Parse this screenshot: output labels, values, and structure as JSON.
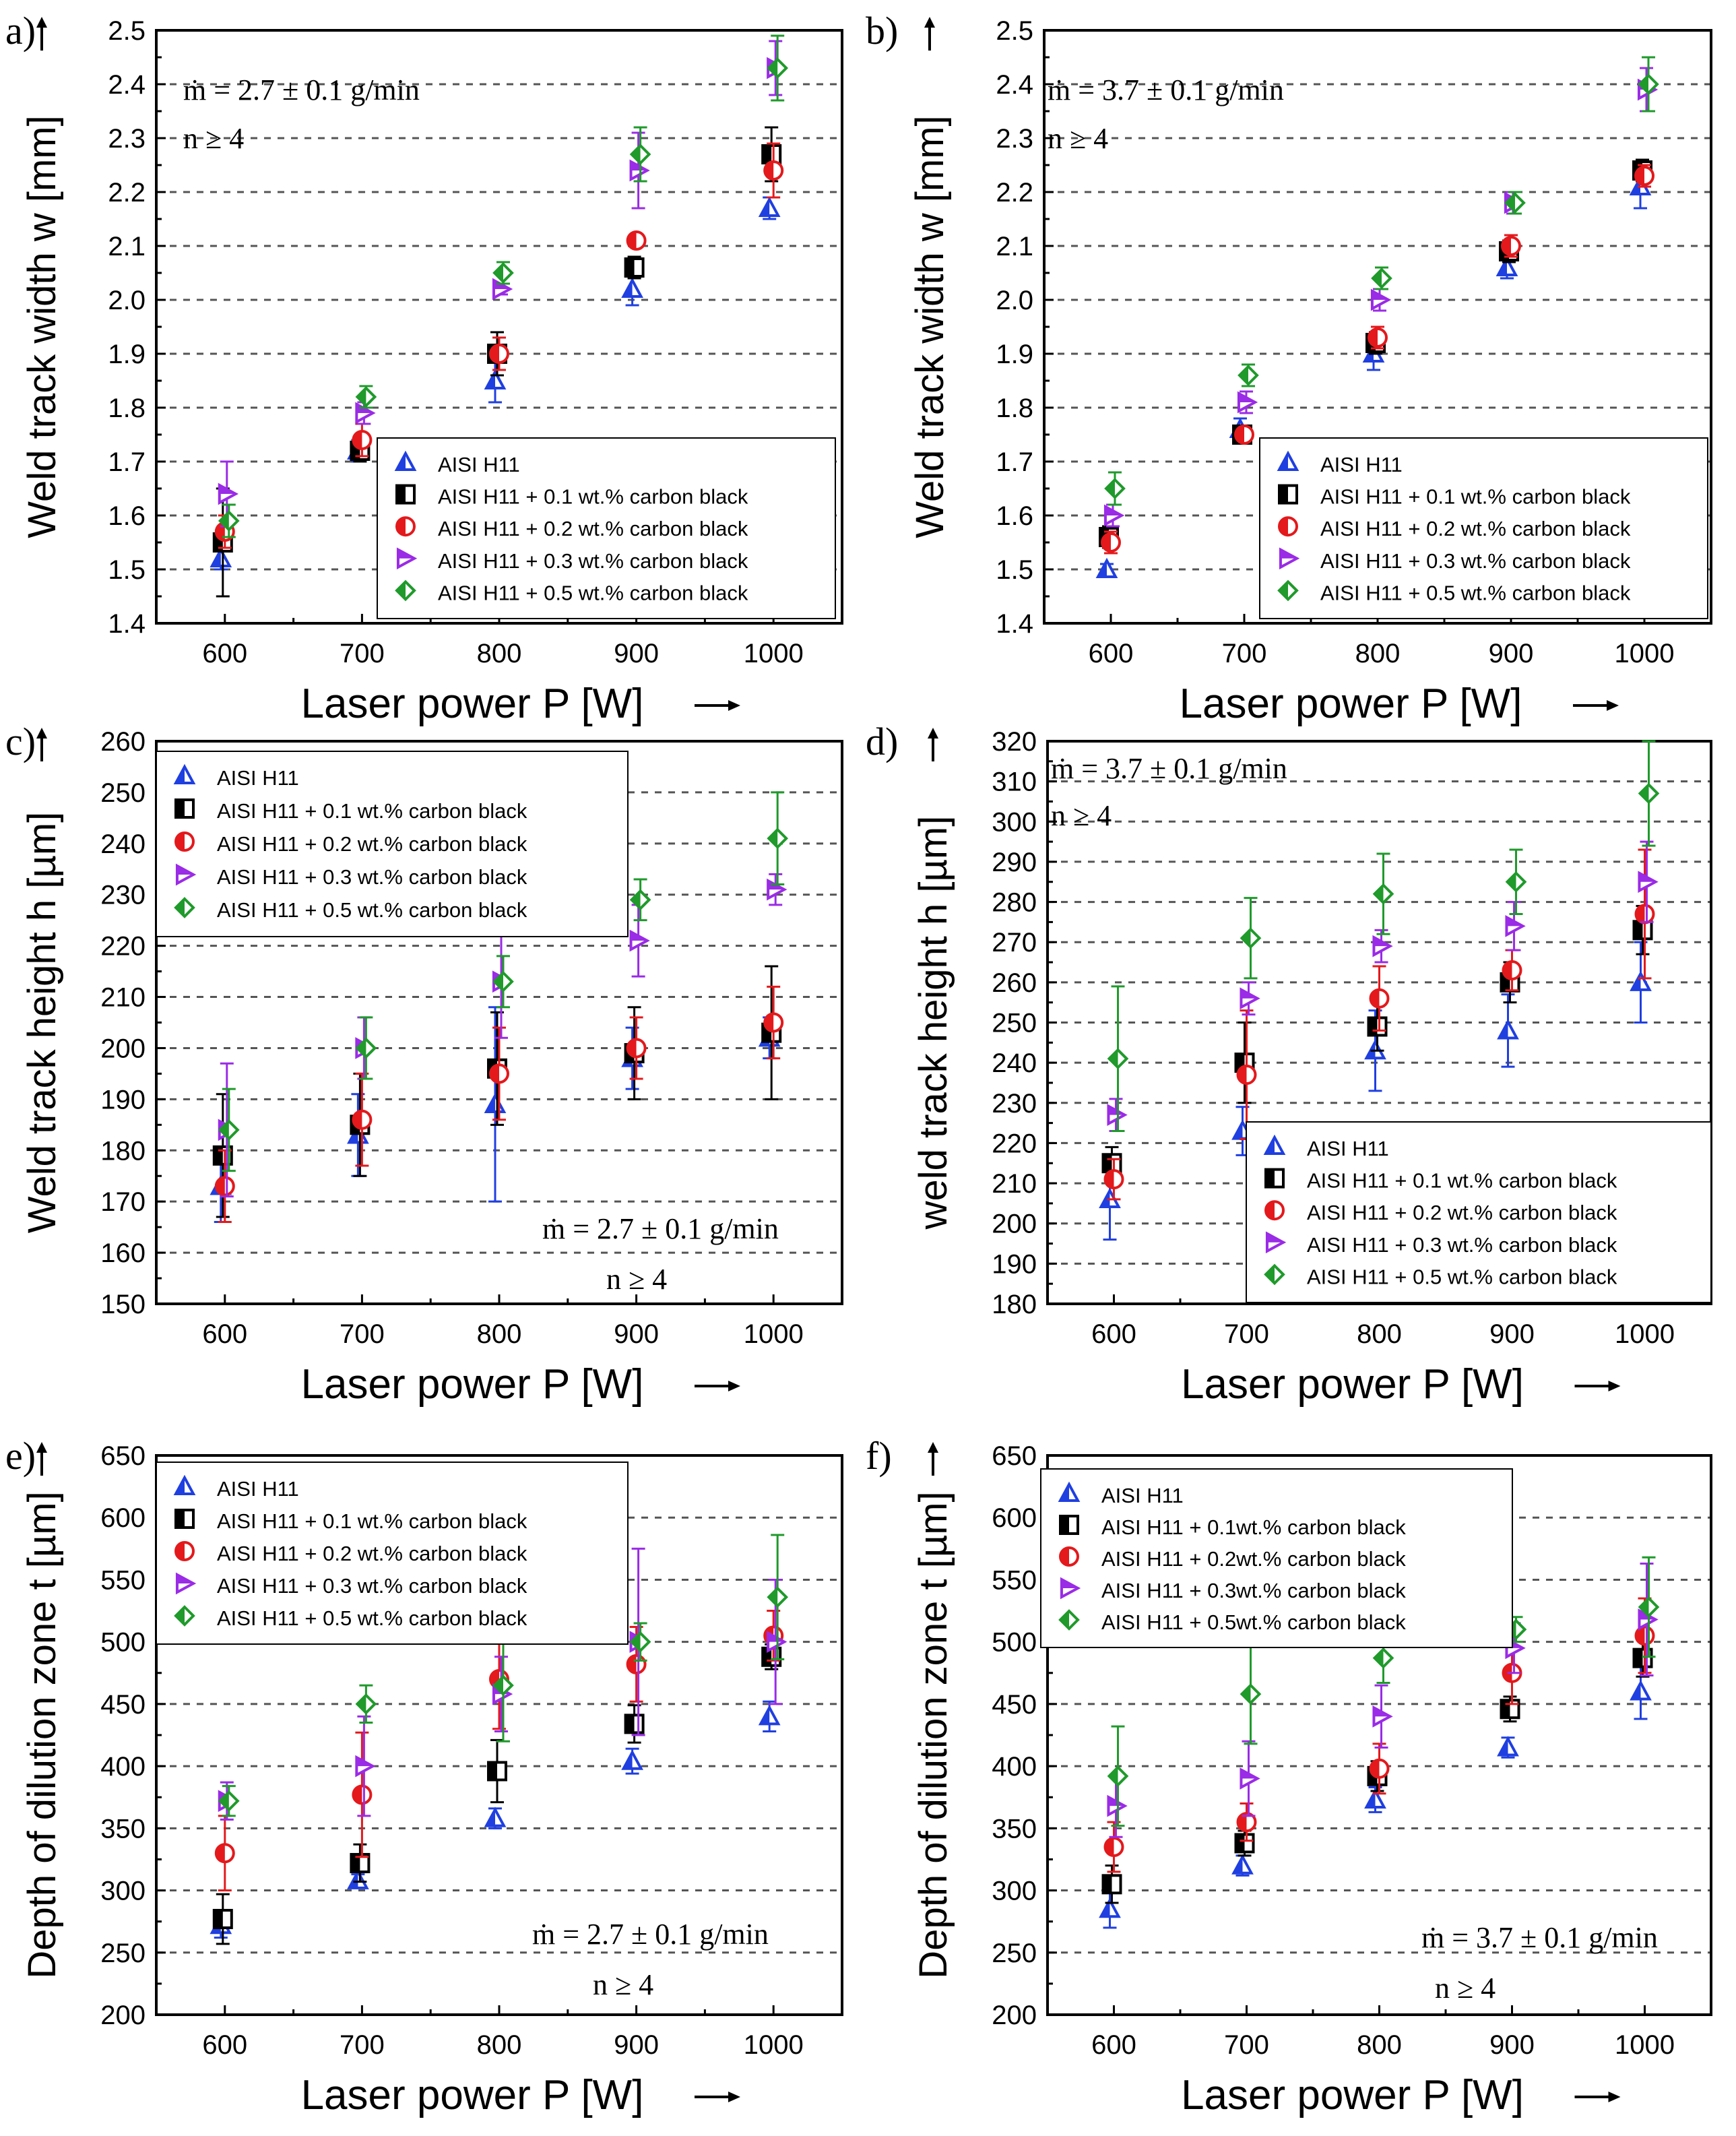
{
  "figure": {
    "series_names": [
      "AISI H11",
      "AISI H11 + 0.1 wt.% carbon black",
      "AISI H11 + 0.2 wt.% carbon black",
      "AISI H11 + 0.3 wt.% carbon black",
      "AISI H11 + 0.5 wt.% carbon black"
    ],
    "series_colors": [
      "#1f3fe0",
      "#000000",
      "#e3191c",
      "#9a2be6",
      "#1f9a2b"
    ],
    "series_markers": [
      "triangle-up",
      "square",
      "circle",
      "triangle-right",
      "diamond"
    ]
  },
  "chart_data": [
    {
      "panel": "a)",
      "type": "scatter",
      "ylabel": "Weld track width w [mm]",
      "xlabel": "Laser power P [W]",
      "x": [
        600,
        700,
        800,
        900,
        1000
      ],
      "xlim": [
        550,
        1050
      ],
      "ylim": [
        1.4,
        2.5
      ],
      "yticks": [
        "1.4",
        "1.5",
        "1.6",
        "1.7",
        "1.8",
        "1.9",
        "2.0",
        "2.1",
        "2.2",
        "2.3",
        "2.4",
        "2.5"
      ],
      "xticks": [
        "600",
        "700",
        "800",
        "900",
        "1000"
      ],
      "annotations": [
        "ṁ = 2.7 ± 0.1 g/min",
        "n  ≥ 4"
      ],
      "legend_names": [
        "AISI H11",
        "AISI H11 + 0.1 wt.% carbon black",
        "AISI H11 + 0.2 wt.% carbon black",
        "AISI H11 + 0.3 wt.% carbon black",
        "AISI H11 + 0.5 wt.% carbon black"
      ],
      "series": [
        {
          "name": "AISI H11",
          "values": [
            1.52,
            1.72,
            1.85,
            2.02,
            2.17
          ],
          "errors": [
            0.02,
            0.02,
            0.04,
            0.03,
            0.02
          ]
        },
        {
          "name": "AISI H11 + 0.1 wt.% carbon black",
          "values": [
            1.55,
            1.72,
            1.9,
            2.06,
            2.27
          ],
          "errors": [
            0.1,
            0.02,
            0.04,
            0.02,
            0.05
          ]
        },
        {
          "name": "AISI H11 + 0.2 wt.% carbon black",
          "values": [
            1.57,
            1.74,
            1.9,
            2.11,
            2.24
          ],
          "errors": [
            0.03,
            0.03,
            0.03,
            0.01,
            0.05
          ]
        },
        {
          "name": "AISI H11 + 0.3 wt.% carbon black",
          "values": [
            1.64,
            1.79,
            2.02,
            2.24,
            2.43
          ],
          "errors": [
            0.06,
            0.02,
            0.01,
            0.07,
            0.05
          ]
        },
        {
          "name": "AISI H11 + 0.5 wt.% carbon black",
          "values": [
            1.59,
            1.82,
            2.05,
            2.27,
            2.43
          ],
          "errors": [
            0.03,
            0.02,
            0.02,
            0.05,
            0.06
          ]
        }
      ]
    },
    {
      "panel": "b)",
      "type": "scatter",
      "ylabel": "Weld track width w [mm]",
      "xlabel": "Laser power P [W]",
      "x": [
        600,
        700,
        800,
        900,
        1000
      ],
      "xlim": [
        550,
        1050
      ],
      "ylim": [
        1.4,
        2.5
      ],
      "yticks": [
        "1.4",
        "1.5",
        "1.6",
        "1.7",
        "1.8",
        "1.9",
        "2.0",
        "2.1",
        "2.2",
        "2.3",
        "2.4",
        "2.5"
      ],
      "xticks": [
        "600",
        "700",
        "800",
        "900",
        "1000"
      ],
      "annotations": [
        "ṁ = 3.7 ± 0.1 g/min",
        "n  ≥ 4"
      ],
      "legend_names": [
        "AISI H11",
        "AISI H11 + 0.1 wt.% carbon black",
        "AISI H11 + 0.2 wt.% carbon black",
        "AISI H11 + 0.3 wt.% carbon black",
        "AISI H11 + 0.5 wt.% carbon black"
      ],
      "series": [
        {
          "name": "AISI H11",
          "values": [
            1.5,
            1.76,
            1.9,
            2.06,
            2.21
          ],
          "errors": [
            0.01,
            0.02,
            0.03,
            0.02,
            0.04
          ]
        },
        {
          "name": "AISI H11 + 0.1 wt.% carbon black",
          "values": [
            1.56,
            1.75,
            1.92,
            2.09,
            2.24
          ],
          "errors": [
            0.02,
            0.01,
            0.02,
            0.02,
            0.02
          ]
        },
        {
          "name": "AISI H11 + 0.2 wt.% carbon black",
          "values": [
            1.55,
            1.75,
            1.93,
            2.1,
            2.23
          ],
          "errors": [
            0.02,
            0.01,
            0.02,
            0.02,
            0.02
          ]
        },
        {
          "name": "AISI H11 + 0.3 wt.% carbon black",
          "values": [
            1.6,
            1.81,
            2.0,
            2.18,
            2.39
          ],
          "errors": [
            0.02,
            0.02,
            0.02,
            0.02,
            0.04
          ]
        },
        {
          "name": "AISI H11 + 0.5 wt.% carbon black",
          "values": [
            1.65,
            1.86,
            2.04,
            2.18,
            2.4
          ],
          "errors": [
            0.03,
            0.02,
            0.02,
            0.02,
            0.05
          ]
        }
      ]
    },
    {
      "panel": "c)",
      "type": "scatter",
      "ylabel": "Weld track height h [µm]",
      "xlabel": "Laser power P [W]",
      "x": [
        600,
        700,
        800,
        900,
        1000
      ],
      "xlim": [
        550,
        1050
      ],
      "ylim": [
        150,
        260
      ],
      "yticks": [
        "150",
        "160",
        "170",
        "180",
        "190",
        "200",
        "210",
        "220",
        "230",
        "240",
        "250",
        "260"
      ],
      "xticks": [
        "600",
        "700",
        "800",
        "900",
        "1000"
      ],
      "annotations": [
        "ṁ = 2.7 ± 0.1 g/min",
        "n  ≥ 4"
      ],
      "legend_names": [
        "AISI H11",
        "AISI H11 + 0.1 wt.% carbon black",
        "AISI H11 + 0.2 wt.% carbon black",
        "AISI H11 + 0.3 wt.% carbon black",
        "AISI H11 + 0.5 wt.% carbon black"
      ],
      "series": [
        {
          "name": "AISI H11",
          "values": [
            173,
            183,
            189,
            198,
            202
          ],
          "errors": [
            7,
            8,
            19,
            6,
            4
          ]
        },
        {
          "name": "AISI H11 + 0.1 wt.% carbon black",
          "values": [
            179,
            185,
            196,
            199,
            203
          ],
          "errors": [
            12,
            10,
            11,
            9,
            13
          ]
        },
        {
          "name": "AISI H11 + 0.2 wt.% carbon black",
          "values": [
            173,
            186,
            195,
            200,
            205
          ],
          "errors": [
            7,
            9,
            9,
            6,
            7
          ]
        },
        {
          "name": "AISI H11 + 0.3 wt.% carbon black",
          "values": [
            184,
            200,
            213,
            221,
            231
          ],
          "errors": [
            13,
            6,
            11,
            7,
            3
          ]
        },
        {
          "name": "AISI H11 + 0.5 wt.% carbon black",
          "values": [
            184,
            200,
            213,
            229,
            241
          ],
          "errors": [
            8,
            6,
            5,
            4,
            9
          ]
        }
      ]
    },
    {
      "panel": "d)",
      "type": "scatter",
      "ylabel": "weld track height h [µm]",
      "xlabel": "Laser power P [W]",
      "x": [
        600,
        700,
        800,
        900,
        1000
      ],
      "xlim": [
        550,
        1050
      ],
      "ylim": [
        180,
        320
      ],
      "yticks": [
        "180",
        "190",
        "200",
        "210",
        "220",
        "230",
        "240",
        "250",
        "260",
        "270",
        "280",
        "290",
        "300",
        "310",
        "320"
      ],
      "xticks": [
        "600",
        "700",
        "800",
        "900",
        "1000"
      ],
      "annotations": [
        "ṁ = 3.7 ± 0.1 g/min",
        "n  ≥ 4"
      ],
      "legend_names": [
        "AISI H11",
        "AISI H11 + 0.1 wt.% carbon black",
        "AISI H11 + 0.2 wt.% carbon black",
        "AISI H11 + 0.3 wt.% carbon black",
        "AISI H11 + 0.5 wt.% carbon black"
      ],
      "series": [
        {
          "name": "AISI H11",
          "values": [
            206,
            223,
            243,
            248,
            260
          ],
          "errors": [
            10,
            6,
            10,
            9,
            10
          ]
        },
        {
          "name": "AISI H11 + 0.1 wt.% carbon black",
          "values": [
            215,
            240,
            249,
            260,
            273
          ],
          "errors": [
            4,
            10,
            6,
            5,
            6
          ]
        },
        {
          "name": "AISI H11 + 0.2 wt.% carbon black",
          "values": [
            211,
            237,
            256,
            263,
            277
          ],
          "errors": [
            5,
            16,
            8,
            5,
            16
          ]
        },
        {
          "name": "AISI H11 + 0.3 wt.% carbon black",
          "values": [
            227,
            256,
            269,
            274,
            285
          ],
          "errors": [
            4,
            4,
            4,
            6,
            10
          ]
        },
        {
          "name": "AISI H11 + 0.5 wt.% carbon black",
          "values": [
            241,
            271,
            282,
            285,
            307
          ],
          "errors": [
            18,
            10,
            10,
            8,
            13
          ]
        }
      ]
    },
    {
      "panel": "e)",
      "type": "scatter",
      "ylabel": "Depth of dilution zone t [µm]",
      "xlabel": "Laser power P [W]",
      "x": [
        600,
        700,
        800,
        900,
        1000
      ],
      "xlim": [
        550,
        1050
      ],
      "ylim": [
        200,
        650
      ],
      "yticks": [
        "200",
        "250",
        "300",
        "350",
        "400",
        "450",
        "500",
        "550",
        "600",
        "650"
      ],
      "xticks": [
        "600",
        "700",
        "800",
        "900",
        "1000"
      ],
      "annotations": [
        "ṁ = 2.7 ± 0.1 g/min",
        "n  ≥ 4"
      ],
      "legend_names": [
        "AISI H11",
        "AISI H11 + 0.1 wt.% carbon black",
        "AISI H11 + 0.2 wt.% carbon black",
        "AISI H11 + 0.3 wt.% carbon black",
        "AISI H11 + 0.5 wt.% carbon black"
      ],
      "series": [
        {
          "name": "AISI H11",
          "values": [
            272,
            308,
            358,
            404,
            440
          ],
          "errors": [
            10,
            5,
            8,
            10,
            12
          ]
        },
        {
          "name": "AISI H11 + 0.1 wt.% carbon black",
          "values": [
            277,
            322,
            396,
            434,
            488
          ],
          "errors": [
            20,
            15,
            25,
            15,
            10
          ]
        },
        {
          "name": "AISI H11 + 0.2 wt.% carbon black",
          "values": [
            330,
            377,
            470,
            482,
            505
          ],
          "errors": [
            30,
            50,
            40,
            30,
            20
          ]
        },
        {
          "name": "AISI H11 + 0.3 wt.% carbon black",
          "values": [
            372,
            400,
            458,
            500,
            500
          ],
          "errors": [
            15,
            40,
            30,
            75,
            50
          ]
        },
        {
          "name": "AISI H11 + 0.5 wt.% carbon black",
          "values": [
            372,
            450,
            465,
            500,
            536
          ],
          "errors": [
            12,
            15,
            45,
            15,
            50
          ]
        }
      ]
    },
    {
      "panel": "f)",
      "type": "scatter",
      "ylabel": "Depth of dilution zone t [µm]",
      "xlabel": "Laser power P [W]",
      "x": [
        600,
        700,
        800,
        900,
        1000
      ],
      "xlim": [
        550,
        1050
      ],
      "ylim": [
        200,
        650
      ],
      "yticks": [
        "200",
        "250",
        "300",
        "350",
        "400",
        "450",
        "500",
        "550",
        "600",
        "650"
      ],
      "xticks": [
        "600",
        "700",
        "800",
        "900",
        "1000"
      ],
      "annotations": [
        "ṁ = 3.7 ± 0.1 g/min",
        "n  ≥ 4"
      ],
      "legend_names": [
        "AISI H11",
        "AISI H11 + 0.1wt.% carbon black",
        "AISI H11 + 0.2wt.% carbon black",
        "AISI H11 + 0.3wt.% carbon black",
        "AISI H11 +  0.5wt.% carbon black"
      ],
      "series": [
        {
          "name": "AISI H11",
          "values": [
            285,
            320,
            373,
            415,
            460
          ],
          "errors": [
            15,
            8,
            10,
            8,
            22
          ]
        },
        {
          "name": "AISI H11 + 0.1wt.% carbon black",
          "values": [
            305,
            338,
            392,
            446,
            487
          ],
          "errors": [
            15,
            10,
            12,
            10,
            15
          ]
        },
        {
          "name": "AISI H11 + 0.2wt.% carbon black",
          "values": [
            335,
            355,
            398,
            475,
            505
          ],
          "errors": [
            20,
            15,
            20,
            25,
            30
          ]
        },
        {
          "name": "AISI H11 + 0.3wt.% carbon black",
          "values": [
            368,
            390,
            440,
            495,
            518
          ],
          "errors": [
            25,
            30,
            25,
            20,
            45
          ]
        },
        {
          "name": "AISI H11 +  0.5wt.% carbon black",
          "values": [
            392,
            458,
            487,
            510,
            528
          ],
          "errors": [
            40,
            40,
            20,
            10,
            40
          ]
        }
      ]
    }
  ]
}
